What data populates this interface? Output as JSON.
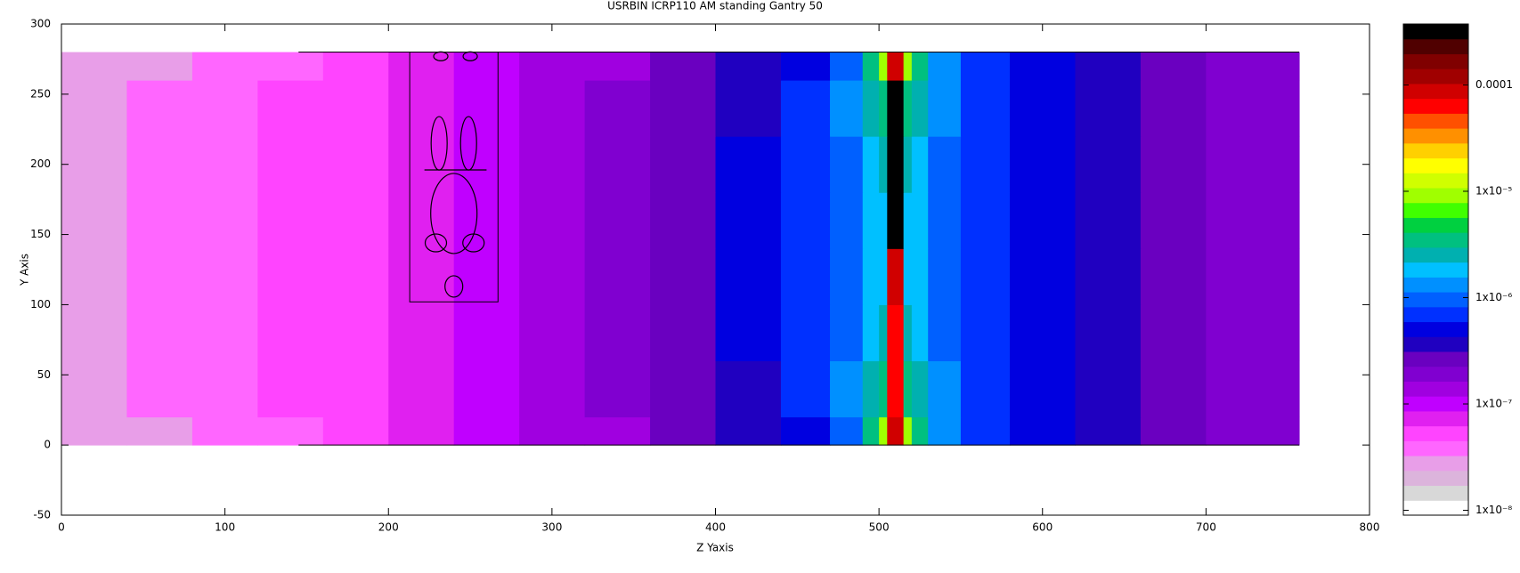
{
  "chart_data": {
    "type": "heatmap",
    "title": "USRBIN ICRP110 AM standing Gantry 50",
    "xlabel": "Z Yaxis",
    "ylabel": "Y Axis",
    "xlim": [
      0,
      800
    ],
    "xticks": [
      0,
      100,
      200,
      300,
      400,
      500,
      600,
      700,
      800
    ],
    "ylim": [
      -50,
      300
    ],
    "yticks": [
      -50,
      0,
      50,
      100,
      150,
      200,
      250,
      300
    ],
    "xbins": [
      0,
      40,
      80,
      120,
      160,
      200,
      240,
      280,
      320,
      360,
      400,
      440,
      470,
      490,
      500,
      505,
      515,
      520,
      530,
      550,
      580,
      620,
      660,
      700,
      757
    ],
    "ybins": [
      0,
      20,
      60,
      100,
      140,
      180,
      220,
      260,
      280
    ],
    "z": [
      [
        2.5e-08,
        3e-08,
        3.5e-08,
        4.5e-08,
        5.5e-08,
        7e-08,
        9e-08,
        1.2e-07,
        1.6e-07,
        2.5e-07,
        3.5e-07,
        5e-07,
        1e-06,
        3e-06,
        1e-05,
        0.0001,
        1e-05,
        3e-06,
        1.2e-06,
        7e-07,
        4.5e-07,
        3.5e-07,
        2.5e-07,
        1.8e-07
      ],
      [
        2.5e-08,
        3.5e-08,
        4e-08,
        5e-08,
        6e-08,
        8e-08,
        1e-07,
        1.3e-07,
        1.8e-07,
        2.8e-07,
        4e-07,
        6e-07,
        1.3e-06,
        2.5e-06,
        4e-06,
        6e-05,
        4e-06,
        2.5e-06,
        1.3e-06,
        8e-07,
        5e-07,
        3.8e-07,
        2.8e-07,
        2e-07
      ],
      [
        2.5e-08,
        3.5e-08,
        4e-08,
        5e-08,
        6e-08,
        8e-08,
        1e-07,
        1.3e-07,
        2e-07,
        3e-07,
        4.5e-07,
        6e-07,
        1e-06,
        1.8e-06,
        2.2e-06,
        6e-05,
        2.2e-06,
        1.8e-06,
        1e-06,
        8e-07,
        5e-07,
        4e-07,
        3e-07,
        2e-07
      ],
      [
        2.5e-08,
        3.5e-08,
        4e-08,
        5e-08,
        6e-08,
        8e-08,
        1e-07,
        1.3e-07,
        2e-07,
        3e-07,
        4.5e-07,
        6e-07,
        9e-07,
        1.6e-06,
        2e-06,
        0.0001,
        2e-06,
        1.6e-06,
        9e-07,
        8e-07,
        5e-07,
        4e-07,
        3e-07,
        2e-07
      ],
      [
        2.5e-08,
        3.5e-08,
        4e-08,
        5e-08,
        6e-08,
        8e-08,
        1e-07,
        1.3e-07,
        2e-07,
        3e-07,
        4.5e-07,
        6e-07,
        9e-07,
        1.6e-06,
        2e-06,
        0.0003,
        2e-06,
        1.6e-06,
        9e-07,
        8e-07,
        5e-07,
        4e-07,
        3e-07,
        2e-07
      ],
      [
        2.5e-08,
        3.5e-08,
        4e-08,
        5e-08,
        6e-08,
        8e-08,
        1e-07,
        1.3e-07,
        2e-07,
        3e-07,
        4.5e-07,
        6e-07,
        1.1e-06,
        1.8e-06,
        2.2e-06,
        0.0003,
        2.2e-06,
        1.8e-06,
        1.1e-06,
        8e-07,
        5e-07,
        4e-07,
        3e-07,
        2e-07
      ],
      [
        2.5e-08,
        3.5e-08,
        4e-08,
        5e-08,
        6e-08,
        8e-08,
        1e-07,
        1.3e-07,
        1.8e-07,
        2.8e-07,
        4e-07,
        6e-07,
        1.3e-06,
        2.5e-06,
        4e-06,
        0.0003,
        4e-06,
        2.5e-06,
        1.3e-06,
        8e-07,
        5e-07,
        3.8e-07,
        2.8e-07,
        2e-07
      ],
      [
        2.5e-08,
        3e-08,
        3.5e-08,
        4.5e-08,
        5.5e-08,
        7e-08,
        9e-08,
        1.2e-07,
        1.6e-07,
        2.5e-07,
        3.5e-07,
        5e-07,
        1e-06,
        3e-06,
        1e-05,
        0.0001,
        1e-05,
        3e-06,
        1.2e-06,
        7e-07,
        4.5e-07,
        3.5e-07,
        2.5e-07,
        1.8e-07
      ]
    ],
    "zscale": "log",
    "zlim": [
      9e-09,
      0.000374
    ],
    "zticks": [
      0.0001,
      {
        "value": 1e-05,
        "label": "1x10⁻⁵"
      },
      {
        "value": 1e-06,
        "label": "1x10⁻⁶"
      },
      {
        "value": 1e-07,
        "label": "1x10⁻⁷"
      },
      {
        "value": 1e-08,
        "label": "1x10⁻⁸"
      }
    ],
    "colormap": [
      "#ffffff",
      "#d8d8d8",
      "#dcb4dc",
      "#e89ee8",
      "#ff66ff",
      "#ff44ff",
      "#e020f0",
      "#c000ff",
      "#a000e0",
      "#8000d0",
      "#6a00c0",
      "#2000c0",
      "#0000e0",
      "#0030ff",
      "#0060ff",
      "#0090ff",
      "#00c0ff",
      "#00b0b0",
      "#00c080",
      "#00d040",
      "#40ff00",
      "#a0ff00",
      "#d0ff00",
      "#ffff00",
      "#ffd000",
      "#ff9000",
      "#ff5000",
      "#ff0000",
      "#d00000",
      "#a00000",
      "#800000",
      "#500000",
      "#000000"
    ]
  }
}
